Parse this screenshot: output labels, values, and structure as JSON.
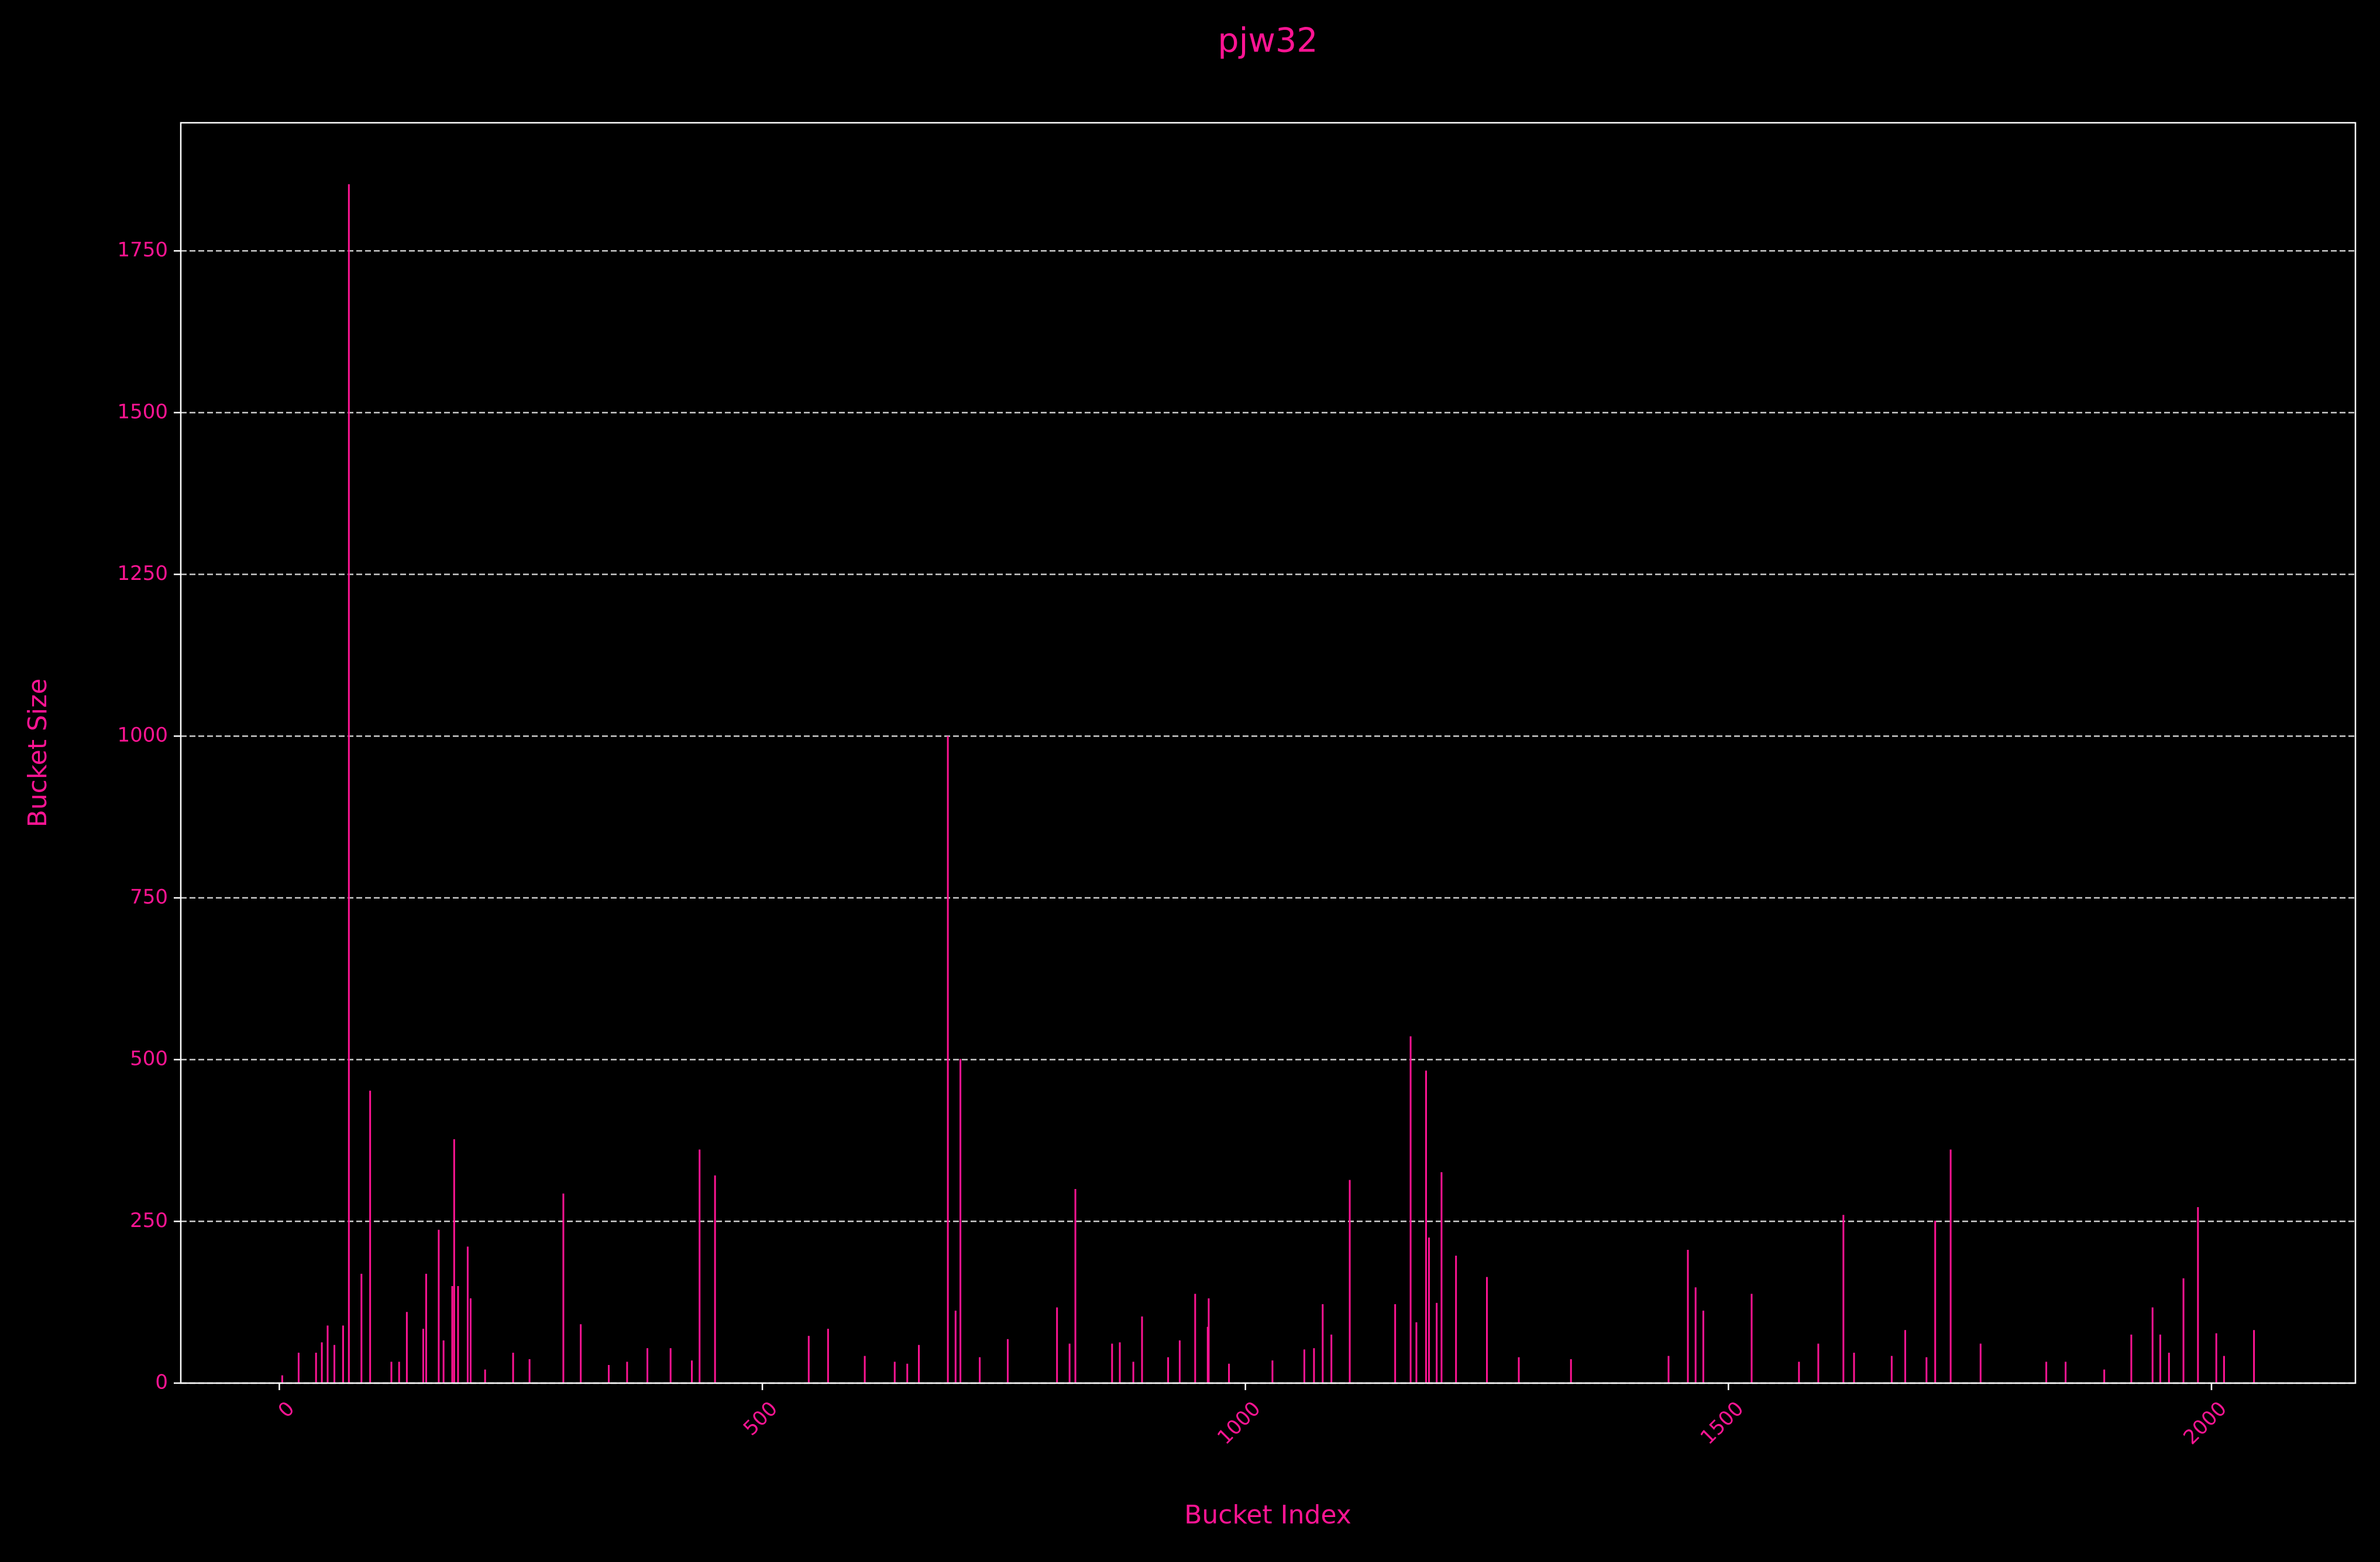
{
  "chart_data": {
    "type": "bar",
    "title": "pjw32",
    "x_label": "Bucket Index",
    "y_label": "Bucket Size",
    "color": "#ff1493",
    "grid": true,
    "grid_axis": "y",
    "x": [
      3,
      20,
      38,
      44,
      50,
      57,
      66,
      72,
      85,
      94,
      116,
      124,
      132,
      149,
      152,
      165,
      170,
      179,
      181,
      185,
      195,
      198,
      213,
      242,
      259,
      294,
      312,
      341,
      360,
      381,
      405,
      427,
      435,
      451,
      548,
      568,
      606,
      637,
      650,
      662,
      692,
      700,
      705,
      725,
      754,
      805,
      818,
      824,
      862,
      870,
      884,
      893,
      920,
      932,
      948,
      961,
      962,
      983,
      1028,
      1061,
      1071,
      1080,
      1089,
      1108,
      1155,
      1171,
      1177,
      1187,
      1190,
      1198,
      1203,
      1218,
      1250,
      1283,
      1337,
      1438,
      1458,
      1466,
      1474,
      1524,
      1573,
      1593,
      1619,
      1630,
      1669,
      1683,
      1705,
      1714,
      1730,
      1761,
      1829,
      1849,
      1889,
      1917,
      1939,
      1947,
      1956,
      1971,
      1986,
      2005,
      2013,
      2044
    ],
    "values": [
      12,
      47,
      47,
      63,
      89,
      59,
      89,
      1853,
      169,
      452,
      33,
      33,
      110,
      84,
      169,
      237,
      66,
      150,
      377,
      150,
      211,
      131,
      21,
      47,
      37,
      293,
      91,
      28,
      33,
      54,
      54,
      35,
      361,
      321,
      73,
      84,
      42,
      33,
      30,
      59,
      1000,
      112,
      501,
      40,
      68,
      117,
      61,
      300,
      61,
      63,
      33,
      103,
      40,
      66,
      138,
      87,
      131,
      30,
      35,
      52,
      54,
      122,
      75,
      314,
      122,
      536,
      94,
      483,
      225,
      124,
      326,
      197,
      164,
      40,
      37,
      42,
      206,
      148,
      112,
      138,
      33,
      61,
      260,
      47,
      42,
      82,
      40,
      251,
      361,
      61,
      33,
      33,
      21,
      75,
      117,
      75,
      47,
      162,
      272,
      77,
      42,
      82
    ],
    "xlim": [
      -102,
      2149
    ],
    "xticks": [
      0,
      500,
      1000,
      1500,
      2000
    ],
    "ylim": [
      0,
      1948
    ],
    "yticks": [
      0,
      250,
      500,
      750,
      1000,
      1250,
      1500,
      1750
    ]
  }
}
